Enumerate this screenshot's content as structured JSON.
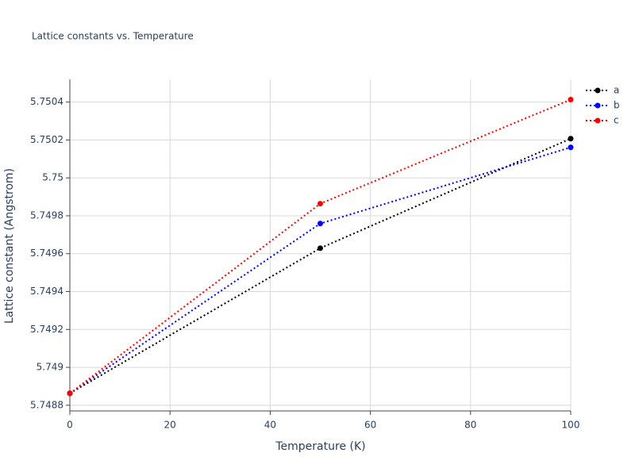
{
  "chart_data": {
    "type": "line",
    "title": "Lattice constants vs. Temperature",
    "x_label": "Temperature (K)",
    "y_label": "Lattice constant (Angstrom)",
    "x": [
      0,
      50,
      100
    ],
    "series": [
      {
        "name": "a",
        "color": "#000000",
        "values": [
          5.748863,
          5.749629,
          5.750207
        ]
      },
      {
        "name": "b",
        "color": "#0000ff",
        "values": [
          5.748863,
          5.749759,
          5.750161
        ]
      },
      {
        "name": "c",
        "color": "#ff0000",
        "values": [
          5.748863,
          5.749864,
          5.750413
        ]
      }
    ],
    "xlim": [
      0,
      100
    ],
    "xticks": [
      0,
      20,
      40,
      60,
      80,
      100
    ],
    "ylim": [
      5.74877,
      5.75052
    ],
    "yticks": [
      5.7488,
      5.749,
      5.7492,
      5.7494,
      5.7496,
      5.7498,
      5.75,
      5.7502,
      5.7504
    ],
    "grid": true,
    "legend": "top-right"
  }
}
